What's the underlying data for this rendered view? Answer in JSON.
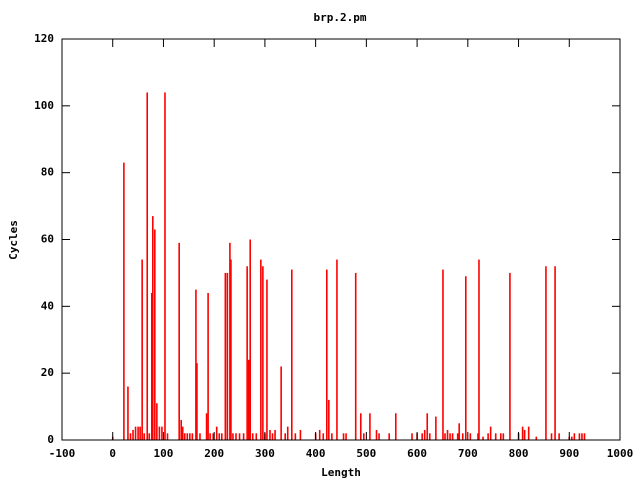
{
  "chart_data": {
    "type": "bar",
    "title": "brp.2.pm",
    "xlabel": "Length",
    "ylabel": "Cycles",
    "color": "#ff0000",
    "x": [
      0,
      22,
      30,
      35,
      40,
      45,
      50,
      54,
      58,
      62,
      68,
      72,
      77,
      79,
      83,
      87,
      92,
      97,
      103,
      108,
      131,
      135,
      138,
      142,
      147,
      152,
      157,
      164,
      166,
      172,
      185,
      188,
      192,
      198,
      205,
      210,
      215,
      222,
      226,
      231,
      233,
      237,
      243,
      250,
      258,
      265,
      268,
      271,
      276,
      283,
      292,
      296,
      300,
      304,
      310,
      315,
      320,
      332,
      340,
      345,
      353,
      360,
      370,
      400,
      408,
      415,
      422,
      426,
      432,
      442,
      455,
      460,
      479,
      489,
      495,
      507,
      520,
      525,
      545,
      558,
      590,
      600,
      610,
      615,
      620,
      625,
      637,
      651,
      655,
      660,
      665,
      670,
      680,
      683,
      690,
      696,
      705,
      720,
      722,
      730,
      740,
      745,
      755,
      765,
      770,
      783,
      800,
      808,
      812,
      820,
      835,
      854,
      865,
      872,
      880,
      900,
      905,
      910,
      920,
      925,
      930
    ],
    "values": [
      1,
      83,
      16,
      2,
      3,
      4,
      4,
      4,
      54,
      2,
      104,
      2,
      44,
      67,
      63,
      11,
      4,
      4,
      104,
      2,
      59,
      6,
      4,
      2,
      2,
      2,
      2,
      45,
      23,
      2,
      8,
      44,
      2,
      2,
      4,
      2,
      2,
      50,
      50,
      59,
      54,
      2,
      2,
      2,
      2,
      52,
      24,
      60,
      2,
      2,
      54,
      52,
      2,
      48,
      3,
      2,
      3,
      22,
      2,
      4,
      51,
      2,
      3,
      2,
      3,
      2,
      51,
      12,
      2,
      54,
      2,
      2,
      50,
      8,
      2,
      8,
      3,
      2,
      2,
      8,
      2,
      2,
      2,
      3,
      8,
      2,
      7,
      51,
      2,
      3,
      2,
      2,
      2,
      5,
      2,
      49,
      2,
      2,
      54,
      1,
      2,
      4,
      2,
      2,
      2,
      50,
      2,
      4,
      3,
      4,
      1,
      52,
      2,
      52,
      2,
      1,
      1,
      2,
      2,
      2,
      2
    ],
    "xlim": [
      -100,
      1000
    ],
    "ylim": [
      0,
      120
    ],
    "xticks": [
      -100,
      0,
      100,
      200,
      300,
      400,
      500,
      600,
      700,
      800,
      900,
      1000
    ],
    "yticks": [
      0,
      20,
      40,
      60,
      80,
      100,
      120
    ]
  }
}
